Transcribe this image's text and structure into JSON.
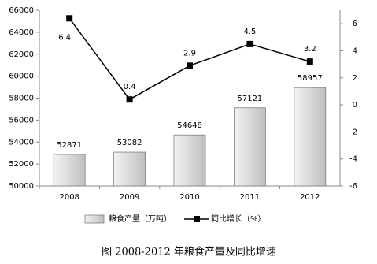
{
  "chart_data": {
    "type": "combo",
    "title": "图 2008-2012 年粮食产量及同比增速",
    "categories": [
      "2008",
      "2009",
      "2010",
      "2011",
      "2012"
    ],
    "series": [
      {
        "name": "粮食产量（万吨）",
        "type": "bar",
        "color": "#d9d9d9",
        "values": [
          52871,
          53082,
          54648,
          57121,
          58957
        ]
      },
      {
        "name": "同比增长（%）",
        "type": "line",
        "color": "#000000",
        "axis": "y2",
        "values": [
          6.4,
          0.4,
          2.9,
          4.5,
          3.2
        ]
      }
    ],
    "ylim": [
      50000,
      66000
    ],
    "yticks": [
      50000,
      52000,
      54000,
      56000,
      58000,
      60000,
      62000,
      64000,
      66000
    ],
    "y2lim": [
      -6,
      7
    ],
    "y2ticks": [
      -6,
      -4,
      -2,
      0,
      2,
      4,
      6
    ],
    "legend": "bottom"
  }
}
